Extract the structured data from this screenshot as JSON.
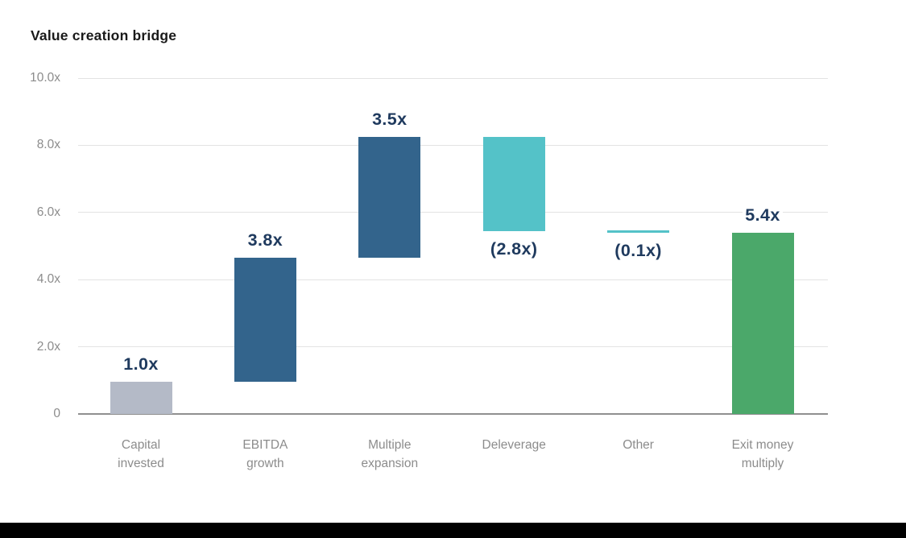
{
  "title": "Value creation bridge",
  "chart_data": {
    "type": "bar",
    "subtype": "waterfall",
    "title": "Value creation bridge",
    "unit_suffix": "x",
    "ylim": [
      0,
      10
    ],
    "grid": true,
    "legend": "none",
    "y_axis": {
      "ticks": [
        {
          "label": "10.0x",
          "value": 10
        },
        {
          "label": "8.0x",
          "value": 8
        },
        {
          "label": "6.0x",
          "value": 6
        },
        {
          "label": "4.0x",
          "value": 4
        },
        {
          "label": "2.0x",
          "value": 2
        },
        {
          "label": "0",
          "value": 0
        }
      ]
    },
    "categories": [
      "Capital invested",
      "EBITDA growth",
      "Multiple expansion",
      "Deleverage",
      "Other",
      "Exit money multiply"
    ],
    "bars": [
      {
        "category": "Capital invested",
        "category_lines": [
          "Capital",
          "invested"
        ],
        "value_label": "1.0x",
        "value": 1.0,
        "start": 0,
        "end": 0.95,
        "color": "#b4bac7",
        "label_side": "above"
      },
      {
        "category": "EBITDA growth",
        "category_lines": [
          "EBITDA",
          "growth"
        ],
        "value_label": "3.8x",
        "value": 3.8,
        "start": 0.95,
        "end": 4.65,
        "color": "#33648c",
        "label_side": "above"
      },
      {
        "category": "Multiple expansion",
        "category_lines": [
          "Multiple",
          "expansion"
        ],
        "value_label": "3.5x",
        "value": 3.5,
        "start": 4.65,
        "end": 8.25,
        "color": "#33648c",
        "label_side": "above"
      },
      {
        "category": "Deleverage",
        "category_lines": [
          "Deleverage"
        ],
        "value_label": "(2.8x)",
        "value": -2.8,
        "start": 8.25,
        "end": 5.45,
        "color": "#54c2c8",
        "label_side": "below"
      },
      {
        "category": "Other",
        "category_lines": [
          "Other"
        ],
        "value_label": "(0.1x)",
        "value": -0.1,
        "start": 5.47,
        "end": 5.4,
        "color": "#54c2c8",
        "label_side": "below"
      },
      {
        "category": "Exit money multiply",
        "category_lines": [
          "Exit money",
          "multiply"
        ],
        "value_label": "5.4x",
        "value": 5.4,
        "start": 0,
        "end": 5.4,
        "color": "#4ba86a",
        "label_side": "above"
      }
    ],
    "colors": {
      "value_label_text": "#1f3a5e",
      "axis_text": "#8c8c8c",
      "gridline": "#e3e3e3",
      "baseline": "#8f8f8f",
      "title_text": "#1a1a1a",
      "bottom_strip": "#000000",
      "background": "#ffffff"
    }
  }
}
